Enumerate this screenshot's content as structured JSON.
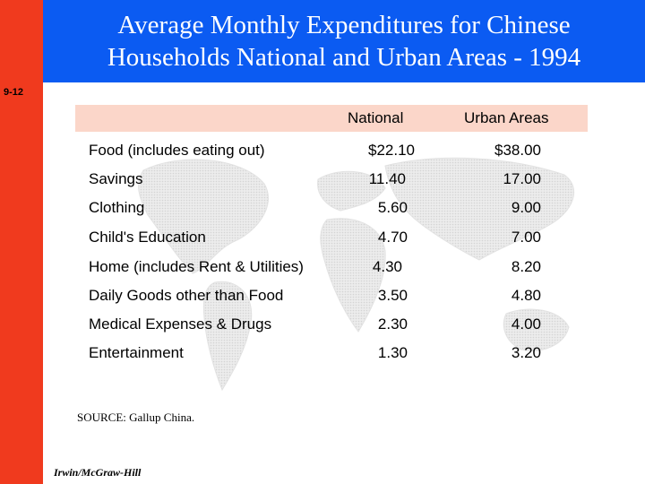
{
  "title_line1": "Average Monthly Expenditures for Chinese",
  "title_line2": "Households National and Urban Areas - 1994",
  "slide_number": "9-12",
  "colors": {
    "title_bar": "#0b5bf2",
    "left_strip": "#f03a1e",
    "header_band": "#fbd6c9"
  },
  "table": {
    "headers": [
      "National",
      "Urban Areas"
    ],
    "rows": [
      {
        "label": "Food (includes eating out)",
        "national": "$22.10",
        "urban": "$38.00"
      },
      {
        "label": "Savings",
        "national": "11.40",
        "urban": "17.00"
      },
      {
        "label": "Clothing",
        "national": "5.60",
        "urban": "9.00"
      },
      {
        "label": "Child's Education",
        "national": "4.70",
        "urban": "7.00"
      },
      {
        "label": "Home (includes Rent & Utilities)",
        "national": "4.30",
        "urban": "8.20"
      },
      {
        "label": "Daily Goods other than Food",
        "national": "3.50",
        "urban": "4.80"
      },
      {
        "label": "Medical Expenses & Drugs",
        "national": "2.30",
        "urban": "4.00"
      },
      {
        "label": "Entertainment",
        "national": "1.30",
        "urban": "3.20"
      }
    ]
  },
  "source": "SOURCE: Gallup China.",
  "publisher": "Irwin/McGraw-Hill"
}
